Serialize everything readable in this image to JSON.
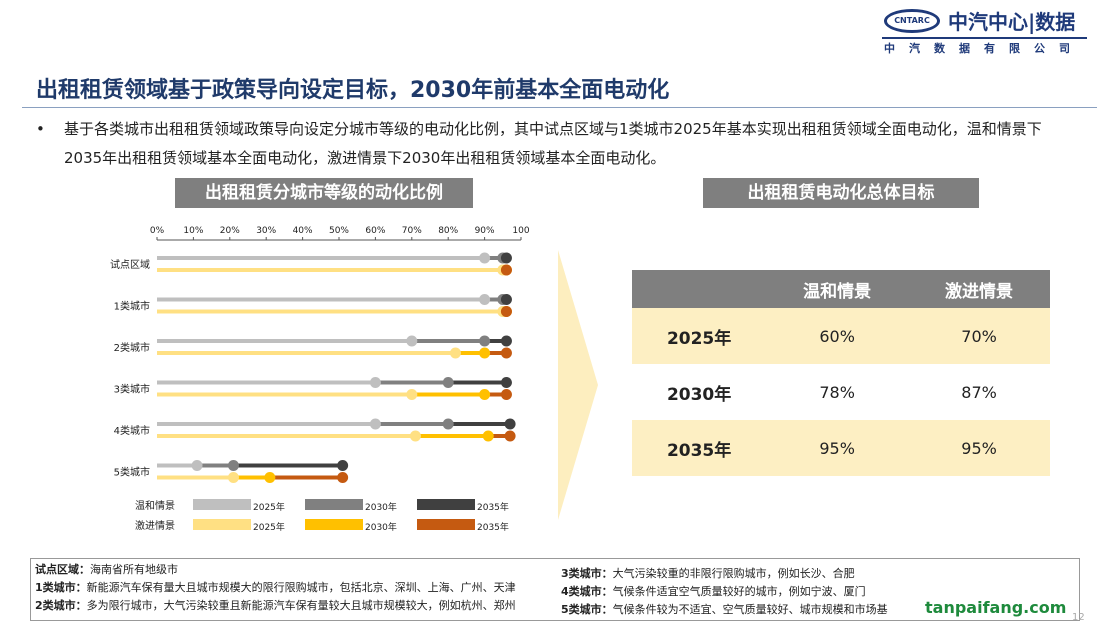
{
  "logo": {
    "emblem": "CNTARC",
    "main": "中汽中心|数据",
    "sub": "中汽数据有限公司"
  },
  "title": "出租租赁领域基于政策导向设定目标，2030年前基本全面电动化",
  "bullet": "基于各类城市出租租赁领域政策导向设定分城市等级的电动化比例，其中试点区域与1类城市2025年基本实现出租租赁领域全面电动化，温和情景下2035年出租租赁领域基本全面电动化，激进情景下2030年出租租赁领域基本全面电动化。",
  "left_header": "出租租赁分城市等级的动化比例",
  "right_header": "出租租赁电动化总体目标",
  "chart_data": {
    "type": "line",
    "title": "出租租赁分城市等级的动化比例",
    "x_ticks": [
      "0%",
      "10%",
      "20%",
      "30%",
      "40%",
      "50%",
      "60%",
      "70%",
      "80%",
      "90%",
      "100"
    ],
    "xlim": [
      0,
      100
    ],
    "categories": [
      "试点区域",
      "1类城市",
      "2类城市",
      "3类城市",
      "4类城市",
      "5类城市"
    ],
    "series": [
      {
        "name": "温和情景",
        "years": [
          "2025年",
          "2030年",
          "2035年"
        ],
        "colors": [
          "#bfbfbf",
          "#808080",
          "#404040"
        ],
        "values": [
          [
            90,
            95,
            96
          ],
          [
            90,
            95,
            96
          ],
          [
            70,
            90,
            96
          ],
          [
            60,
            80,
            96
          ],
          [
            60,
            80,
            97
          ],
          [
            11,
            21,
            51
          ]
        ]
      },
      {
        "name": "激进情景",
        "years": [
          "2025年",
          "2030年",
          "2035年"
        ],
        "colors": [
          "#ffe083",
          "#ffc000",
          "#c55a11"
        ],
        "values": [
          [
            95,
            96,
            96
          ],
          [
            95,
            96,
            96
          ],
          [
            82,
            90,
            96
          ],
          [
            70,
            90,
            96
          ],
          [
            71,
            91,
            97
          ],
          [
            21,
            31,
            51
          ]
        ]
      }
    ],
    "legend": "bottom"
  },
  "table": {
    "headers": [
      "",
      "温和情景",
      "激进情景"
    ],
    "rows": [
      [
        "2025年",
        "60%",
        "70%"
      ],
      [
        "2030年",
        "78%",
        "87%"
      ],
      [
        "2035年",
        "95%",
        "95%"
      ]
    ]
  },
  "footnotes": {
    "left": [
      [
        "试点区域：",
        "海南省所有地级市"
      ],
      [
        "1类城市：",
        "新能源汽车保有量大且城市规模大的限行限购城市，包括北京、深圳、上海、广州、天津"
      ],
      [
        "2类城市：",
        "多为限行城市，大气污染较重且新能源汽车保有量较大且城市规模较大，例如杭州、郑州"
      ]
    ],
    "right": [
      [
        "3类城市：",
        "大气污染较重的非限行限购城市，例如长沙、合肥"
      ],
      [
        "4类城市：",
        "气候条件适宜空气质量较好的城市，例如宁波、厦门"
      ],
      [
        "5类城市：",
        "气候条件较为不适宜、空气质量较好、城市规模和市场基"
      ]
    ]
  },
  "watermark": "tanpaifang.com",
  "page": "12"
}
